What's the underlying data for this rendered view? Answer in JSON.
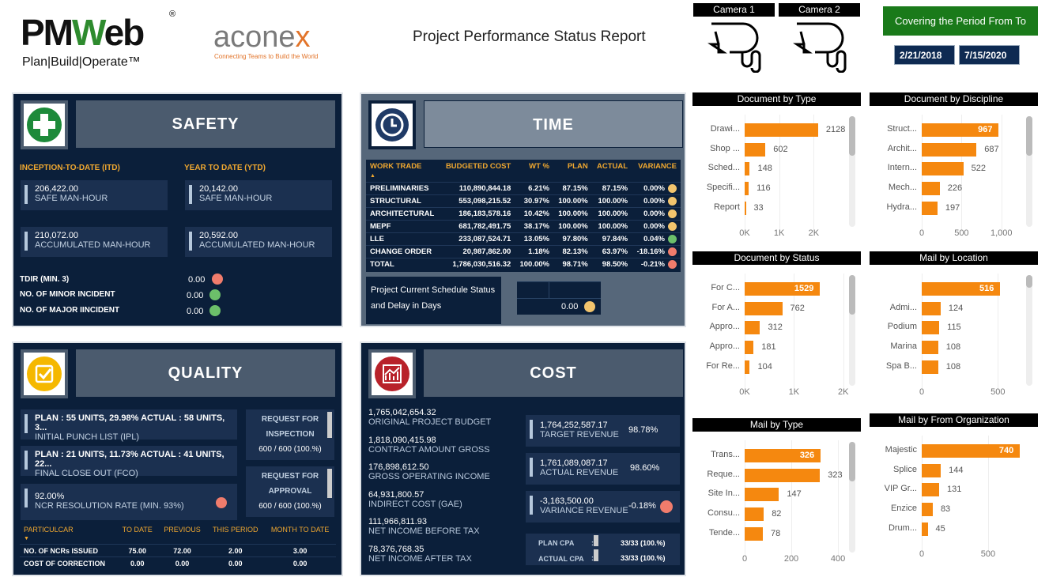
{
  "header": {
    "logo_pmweb": "PMWeb",
    "logo_pmweb_tag": "Plan|Build|Operate™",
    "logo_aconex": "aconex",
    "logo_aconex_tag": "Connecting Teams to Build the World",
    "title": "Project Performance Status Report",
    "camera1": "Camera 1",
    "camera2": "Camera 2",
    "period_label": "Covering the Period From To",
    "date_from": "2/21/2018",
    "date_to": "7/15/2020"
  },
  "safety": {
    "title": "SAFETY",
    "itd_label": "INCEPTION-TO-DATE (ITD)",
    "ytd_label": "YEAR TO DATE (YTD)",
    "itd": [
      {
        "value": "206,422.00",
        "label": "SAFE MAN-HOUR"
      },
      {
        "value": "210,072.00",
        "label": "ACCUMULATED MAN-HOUR"
      }
    ],
    "ytd": [
      {
        "value": "20,142.00",
        "label": "SAFE MAN-HOUR"
      },
      {
        "value": "20,592.00",
        "label": "ACCUMULATED MAN-HOUR"
      }
    ],
    "indicators": [
      {
        "label": "TDIR (MIN. 3)",
        "value": "0.00",
        "status": "red"
      },
      {
        "label": "NO. OF MINOR INCIDENT",
        "value": "0.00",
        "status": "green"
      },
      {
        "label": "NO. OF MAJOR IINCIDENT",
        "value": "0.00",
        "status": "green"
      }
    ]
  },
  "time": {
    "title": "TIME",
    "headers": [
      "WORK TRADE",
      "BUDGETED COST",
      "WT %",
      "PLAN",
      "ACTUAL",
      "VARIANCE"
    ],
    "rows": [
      [
        "PRELIMINARIES",
        "110,890,844.18",
        "6.21%",
        "87.15%",
        "87.15%",
        "0.00%",
        "yellow"
      ],
      [
        "STRUCTURAL",
        "553,098,215.52",
        "30.97%",
        "100.00%",
        "100.00%",
        "0.00%",
        "yellow"
      ],
      [
        "ARCHITECTURAL",
        "186,183,578.16",
        "10.42%",
        "100.00%",
        "100.00%",
        "0.00%",
        "yellow"
      ],
      [
        "MEPF",
        "681,782,491.75",
        "38.17%",
        "100.00%",
        "100.00%",
        "0.00%",
        "yellow"
      ],
      [
        "LLE",
        "233,087,524.71",
        "13.05%",
        "97.80%",
        "97.84%",
        "0.04%",
        "green"
      ],
      [
        "CHANGE ORDER",
        "20,987,862.00",
        "1.18%",
        "82.13%",
        "63.97%",
        "-18.16%",
        "red"
      ],
      [
        "TOTAL",
        "1,786,030,516.32",
        "100.00%",
        "98.71%",
        "98.50%",
        "-0.21%",
        "red"
      ]
    ],
    "schedule_label": "Project Current Schedule Status and Delay in Days",
    "schedule_value": "0.00"
  },
  "quality": {
    "title": "QUALITY",
    "kpis": [
      {
        "value": "PLAN : 55 UNITS, 29.98% ACTUAL : 58 UNITS, 3...",
        "label": "INITIAL PUNCH LIST (IPL)"
      },
      {
        "value": "PLAN : 21 UNITS, 11.73% ACTUAL : 41 UNITS, 22...",
        "label": "FINAL CLOSE OUT (FCO)"
      },
      {
        "value": "92.00%",
        "label": "NCR RESOLUTION RATE (MIN. 93%)"
      }
    ],
    "requests": [
      {
        "label": "REQUEST FOR INSPECTION",
        "value": "600 / 600 (100.%)"
      },
      {
        "label": "REQUEST FOR APPROVAL",
        "value": "600 / 600 (100.%)"
      }
    ],
    "headers": [
      "PARTICULCAR",
      "TO DATE",
      "PREVIOUS",
      "THIS PERIOD",
      "MONTH TO DATE"
    ],
    "rows": [
      [
        "NO. OF NCRs ISSUED",
        "75.00",
        "72.00",
        "2.00",
        "3.00"
      ],
      [
        "COST OF CORRECTION",
        "0.00",
        "0.00",
        "0.00",
        "0.00"
      ]
    ]
  },
  "cost": {
    "title": "COST",
    "items": [
      {
        "value": "1,765,042,654.32",
        "label": "ORIGINAL PROJECT BUDGET"
      },
      {
        "value": "1,818,090,415.98",
        "label": "CONTRACT AMOUNT GROSS"
      },
      {
        "value": "176,898,612.50",
        "label": "GROSS OPERATING INCOME"
      },
      {
        "value": "64,931,800.57",
        "label": "INDIRECT COST (GAE)"
      },
      {
        "value": "111,966,811.93",
        "label": "NET INCOME BEFORE TAX"
      },
      {
        "value": "78,376,768.35",
        "label": "NET INCOME AFTER TAX"
      }
    ],
    "revenue": [
      {
        "value": "1,764,252,587.17",
        "label": "TARGET REVENUE",
        "pct": "98.78%"
      },
      {
        "value": "1,761,089,087.17",
        "label": "ACTUAL REVENUE",
        "pct": "98.60%"
      },
      {
        "value": "-3,163,500.00",
        "label": "VARIANCE REVENUE",
        "pct": "-0.18%"
      }
    ],
    "cpa": [
      {
        "label": "PLAN CPA",
        "value": "33/33  (100.%)"
      },
      {
        "label": "ACTUAL CPA",
        "value": "33/33  (100.%)"
      }
    ]
  },
  "chart_data": [
    {
      "type": "bar",
      "title": "Document by Type",
      "categories": [
        "Drawi...",
        "Shop ...",
        "Sched...",
        "Specifi...",
        "Report"
      ],
      "values": [
        2128,
        602,
        148,
        116,
        33
      ],
      "ticks": [
        "0K",
        "1K",
        "2K"
      ],
      "tick_values": [
        0,
        1000,
        2000
      ],
      "xlim": [
        0,
        3000
      ]
    },
    {
      "type": "bar",
      "title": "Document by Discipline",
      "categories": [
        "Struct...",
        "Archit...",
        "Intern...",
        "Mech...",
        "Hydra..."
      ],
      "values": [
        967,
        687,
        522,
        226,
        197
      ],
      "ticks": [
        "0",
        "500",
        "1,000"
      ],
      "tick_values": [
        0,
        500,
        1000
      ],
      "xlim": [
        0,
        1300
      ]
    },
    {
      "type": "bar",
      "title": "Document by Status",
      "categories": [
        "For C...",
        "For A...",
        "Appro...",
        "Appro...",
        "For Re..."
      ],
      "values": [
        1529,
        762,
        312,
        181,
        104
      ],
      "ticks": [
        "0K",
        "1K",
        "2K"
      ],
      "tick_values": [
        0,
        1000,
        2000
      ],
      "xlim": [
        0,
        2100
      ]
    },
    {
      "type": "bar",
      "title": "Mail by Location",
      "categories": [
        "",
        "Admi...",
        "Podium",
        "Marina",
        "Spa B..."
      ],
      "values": [
        516,
        124,
        115,
        108,
        108
      ],
      "ticks": [
        "0",
        "500"
      ],
      "tick_values": [
        0,
        500
      ],
      "xlim": [
        0,
        680
      ]
    },
    {
      "type": "bar",
      "title": "Mail by Type",
      "categories": [
        "Trans...",
        "Reque...",
        "Site In...",
        "Consu...",
        "Tende..."
      ],
      "values": [
        326,
        323,
        147,
        82,
        78
      ],
      "ticks": [
        "0",
        "200",
        "400"
      ],
      "tick_values": [
        0,
        200,
        400
      ],
      "xlim": [
        0,
        444
      ]
    },
    {
      "type": "bar",
      "title": "Mail by From Organization",
      "categories": [
        "Majestic",
        "Splice",
        "VIP Gr...",
        "Enzice",
        "Drum..."
      ],
      "values": [
        740,
        144,
        131,
        83,
        45
      ],
      "ticks": [
        "0",
        "500"
      ],
      "tick_values": [
        0,
        500
      ],
      "xlim": [
        0,
        780
      ]
    }
  ]
}
